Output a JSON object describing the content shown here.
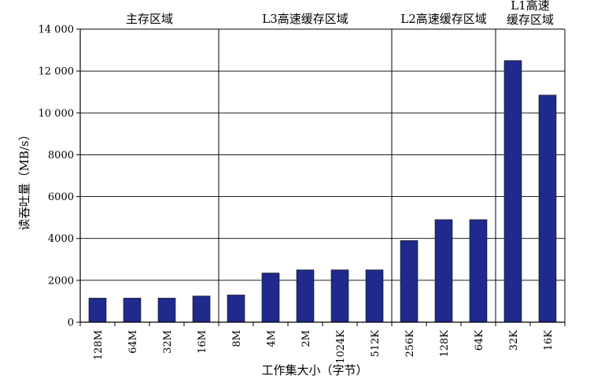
{
  "chart_data": {
    "type": "bar",
    "title": "",
    "xlabel": "工作集大小（字节）",
    "ylabel": "读吞吐量（MB/s）",
    "ylim": [
      0,
      14000
    ],
    "yticks": [
      0,
      2000,
      4000,
      6000,
      8000,
      10000,
      12000,
      14000
    ],
    "ytick_labels": [
      "0",
      "2000",
      "4000",
      "6000",
      "8000",
      "10 000",
      "12 000",
      "14 000"
    ],
    "grid": true,
    "bar_color": "#1f2a8c",
    "categories": [
      "128M",
      "64M",
      "32M",
      "16M",
      "8M",
      "4M",
      "2M",
      "1024K",
      "512K",
      "256K",
      "128K",
      "64K",
      "32K",
      "16K"
    ],
    "values": [
      1150,
      1150,
      1150,
      1250,
      1300,
      2350,
      2500,
      2500,
      2500,
      3900,
      4900,
      4900,
      12500,
      10850
    ],
    "regions": [
      {
        "label": "主存区域",
        "start": 0,
        "end": 3
      },
      {
        "label": "L3高速缓存区域",
        "start": 4,
        "end": 8
      },
      {
        "label": "L2高速缓存区域",
        "start": 9,
        "end": 11
      },
      {
        "label_lines": [
          "L1高速",
          "缓存区域"
        ],
        "start": 12,
        "end": 13
      }
    ]
  }
}
